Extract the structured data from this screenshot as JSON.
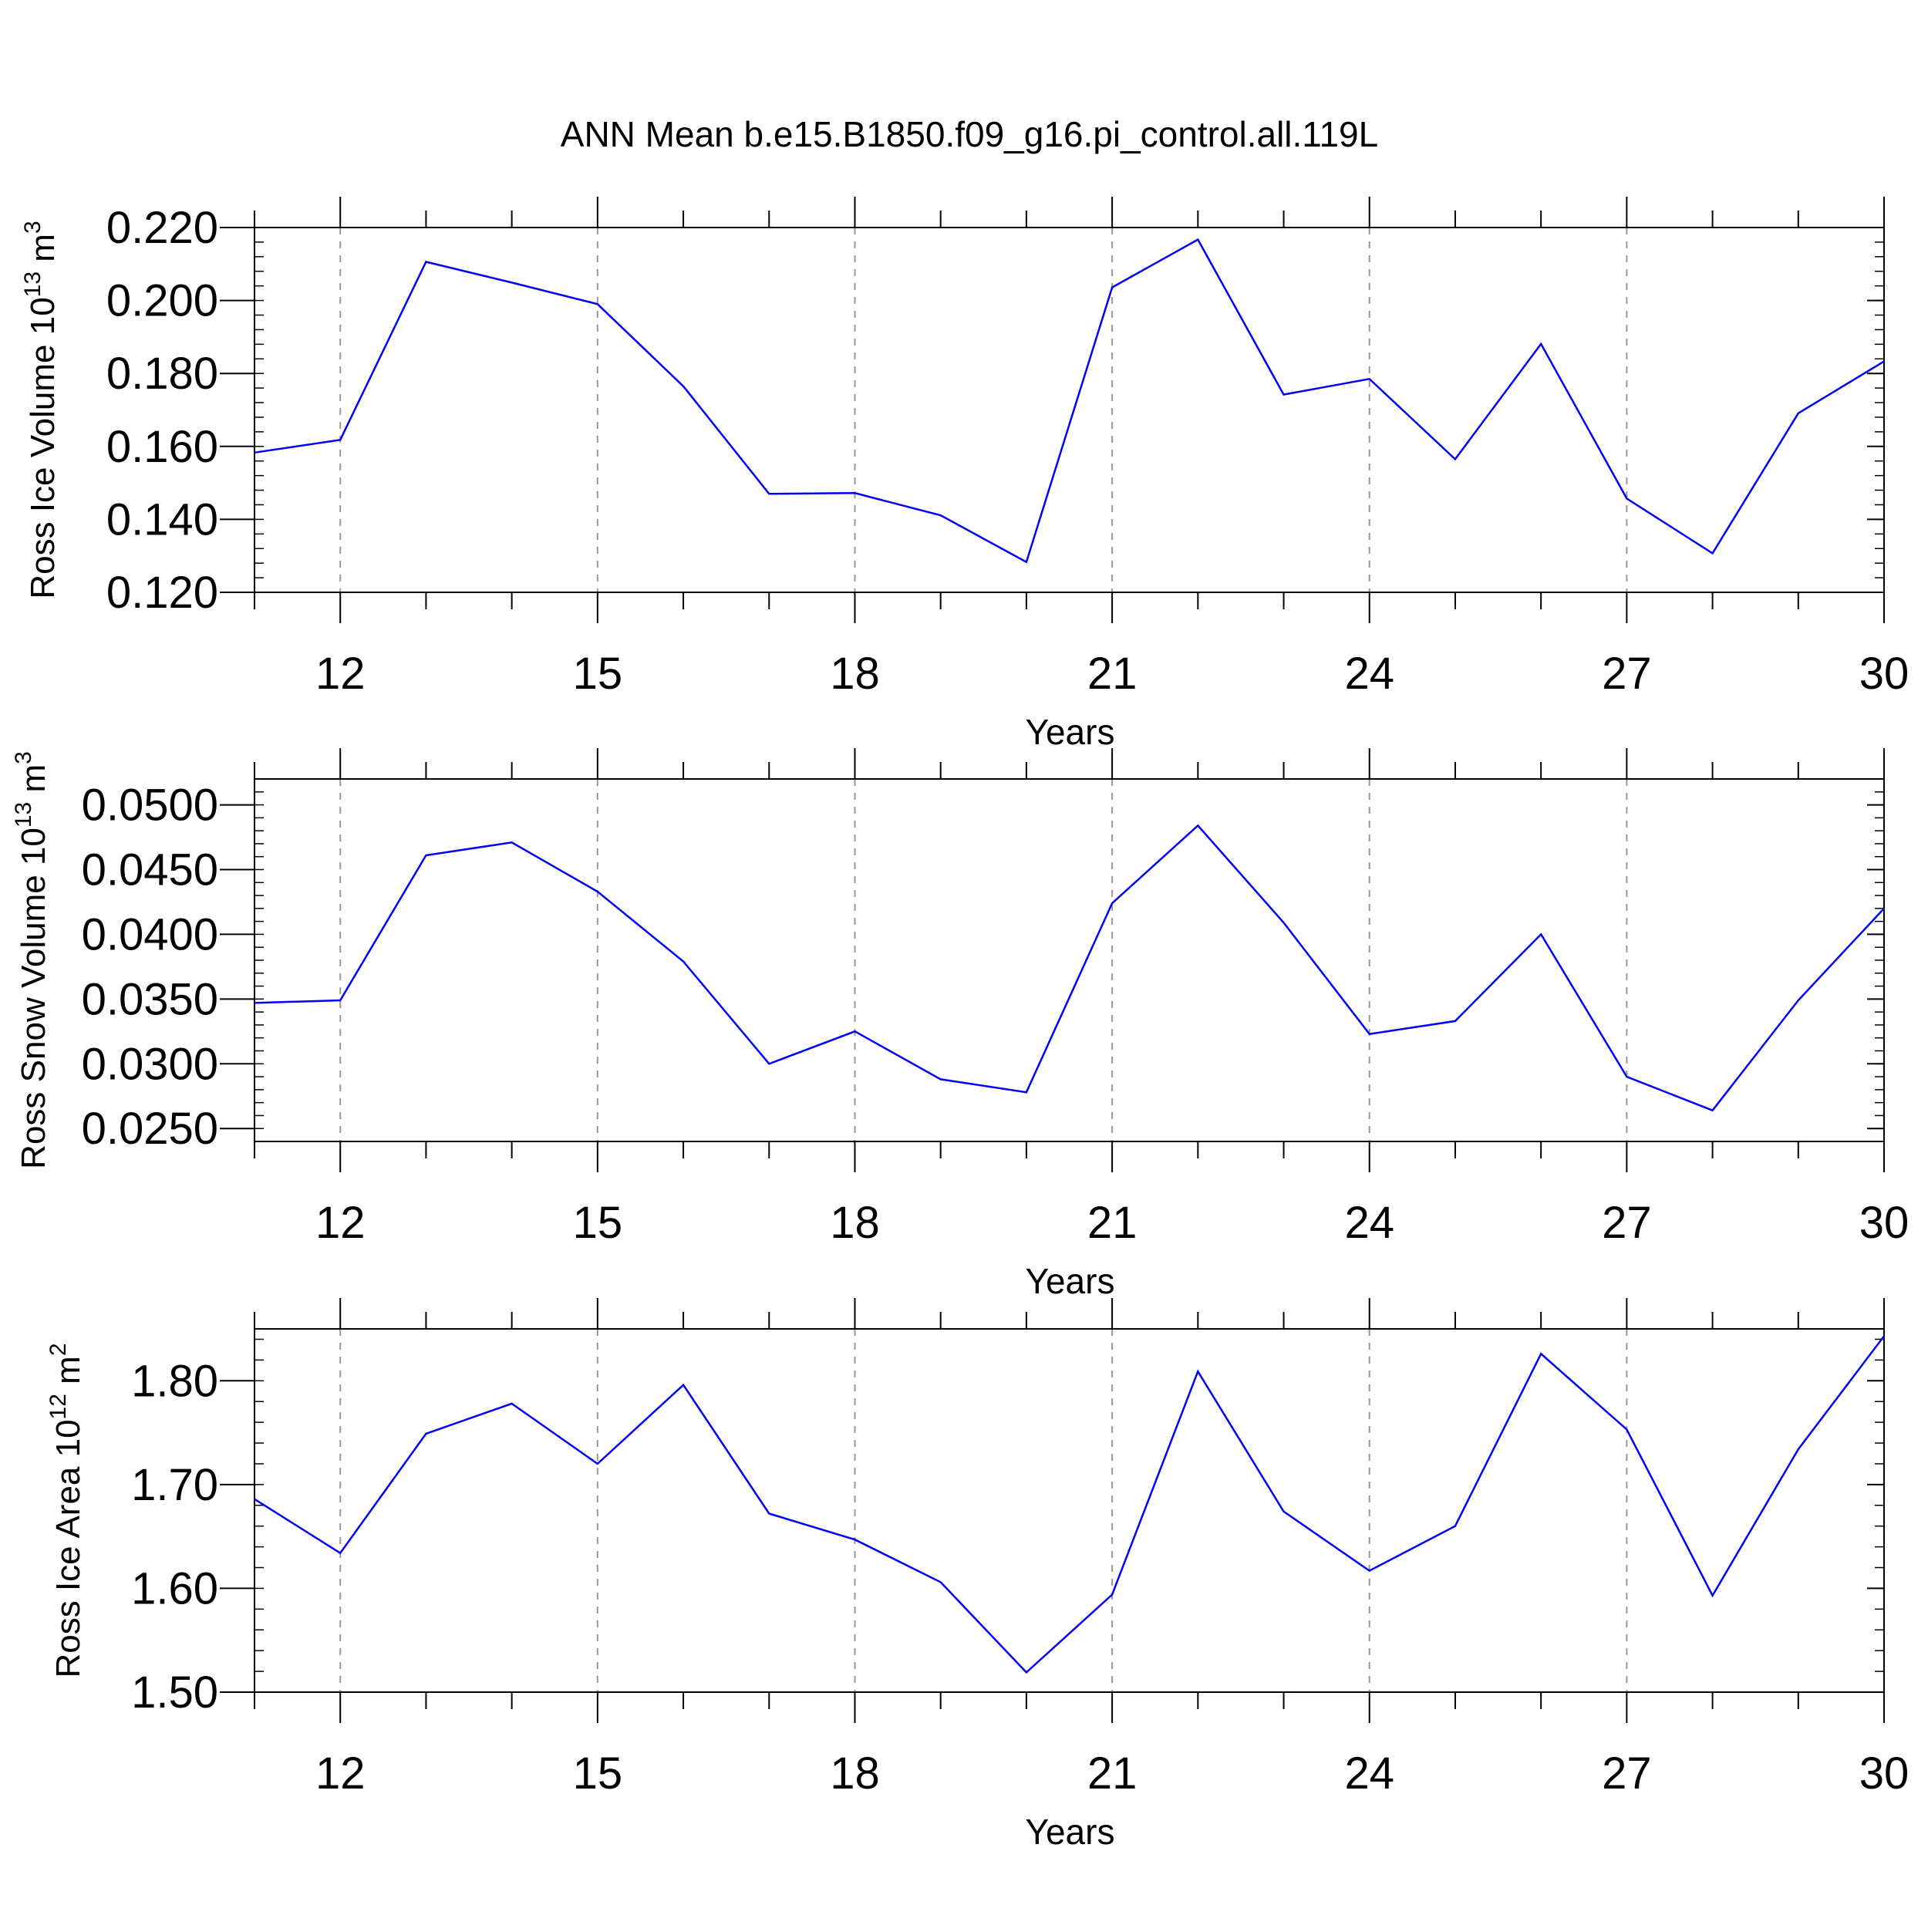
{
  "title": "ANN Mean b.e15.B1850.f09_g16.pi_control.all.119L",
  "line_color": "#0000ff",
  "chart_data": [
    {
      "type": "line",
      "ylabel": "Ross Ice Volume 10",
      "ylabel_exp": "13",
      "ylabel_unit": " m",
      "ylabel_unit_exp": "3",
      "xlabel": "Years",
      "xlim": [
        11,
        30
      ],
      "ylim": [
        0.12,
        0.22
      ],
      "yticks": [
        0.12,
        0.14,
        0.16,
        0.18,
        0.2,
        0.22
      ],
      "ytick_labels": [
        "0.120",
        "0.140",
        "0.160",
        "0.180",
        "0.200",
        "0.220"
      ],
      "xticks": [
        12,
        15,
        18,
        21,
        24,
        27,
        30
      ],
      "xtick_labels": [
        "12",
        "15",
        "18",
        "21",
        "24",
        "27",
        "30"
      ],
      "grid": "vertical dashed",
      "x": [
        11,
        12,
        13,
        14,
        15,
        16,
        17,
        18,
        19,
        20,
        21,
        22,
        23,
        24,
        25,
        26,
        27,
        28,
        29,
        30
      ],
      "series": [
        {
          "values": [
            0.1583,
            0.1618,
            0.2106,
            0.2049,
            0.199,
            0.1765,
            0.147,
            0.1472,
            0.1411,
            0.1283,
            0.2036,
            0.2167,
            0.1742,
            0.1785,
            0.1565,
            0.1881,
            0.1457,
            0.1307,
            0.1691,
            0.1833
          ]
        }
      ]
    },
    {
      "type": "line",
      "ylabel": "Ross Snow Volume 10",
      "ylabel_exp": "13",
      "ylabel_unit": " m",
      "ylabel_unit_exp": "3",
      "xlabel": "Years",
      "xlim": [
        11,
        30
      ],
      "ylim": [
        0.024,
        0.052
      ],
      "yticks": [
        0.025,
        0.03,
        0.035,
        0.04,
        0.045,
        0.05
      ],
      "ytick_labels": [
        "0.0250",
        "0.0300",
        "0.0350",
        "0.0400",
        "0.0450",
        "0.0500"
      ],
      "xticks": [
        12,
        15,
        18,
        21,
        24,
        27,
        30
      ],
      "xtick_labels": [
        "12",
        "15",
        "18",
        "21",
        "24",
        "27",
        "30"
      ],
      "grid": "vertical dashed",
      "x": [
        11,
        12,
        13,
        14,
        15,
        16,
        17,
        18,
        19,
        20,
        21,
        22,
        23,
        24,
        25,
        26,
        27,
        28,
        29,
        30
      ],
      "series": [
        {
          "values": [
            0.0347,
            0.0349,
            0.0461,
            0.0471,
            0.0433,
            0.0379,
            0.03,
            0.0325,
            0.0288,
            0.0278,
            0.0424,
            0.0484,
            0.0409,
            0.0323,
            0.0333,
            0.04,
            0.029,
            0.0264,
            0.0349,
            0.042
          ]
        }
      ]
    },
    {
      "type": "line",
      "ylabel": "Ross Ice Area 10",
      "ylabel_exp": "12",
      "ylabel_unit": " m",
      "ylabel_unit_exp": "2",
      "xlabel": "Years",
      "xlim": [
        11,
        30
      ],
      "ylim": [
        1.5,
        1.85
      ],
      "yticks": [
        1.5,
        1.6,
        1.7,
        1.8
      ],
      "ytick_labels": [
        "1.50",
        "1.60",
        "1.70",
        "1.80"
      ],
      "xticks": [
        12,
        15,
        18,
        21,
        24,
        27,
        30
      ],
      "xtick_labels": [
        "12",
        "15",
        "18",
        "21",
        "24",
        "27",
        "30"
      ],
      "grid": "vertical dashed",
      "x": [
        11,
        12,
        13,
        14,
        15,
        16,
        17,
        18,
        19,
        20,
        21,
        22,
        23,
        24,
        25,
        26,
        27,
        28,
        29,
        30
      ],
      "series": [
        {
          "values": [
            1.686,
            1.634,
            1.749,
            1.778,
            1.72,
            1.796,
            1.672,
            1.647,
            1.606,
            1.519,
            1.594,
            1.809,
            1.674,
            1.617,
            1.66,
            1.826,
            1.753,
            1.593,
            1.734,
            1.843
          ]
        }
      ]
    }
  ]
}
